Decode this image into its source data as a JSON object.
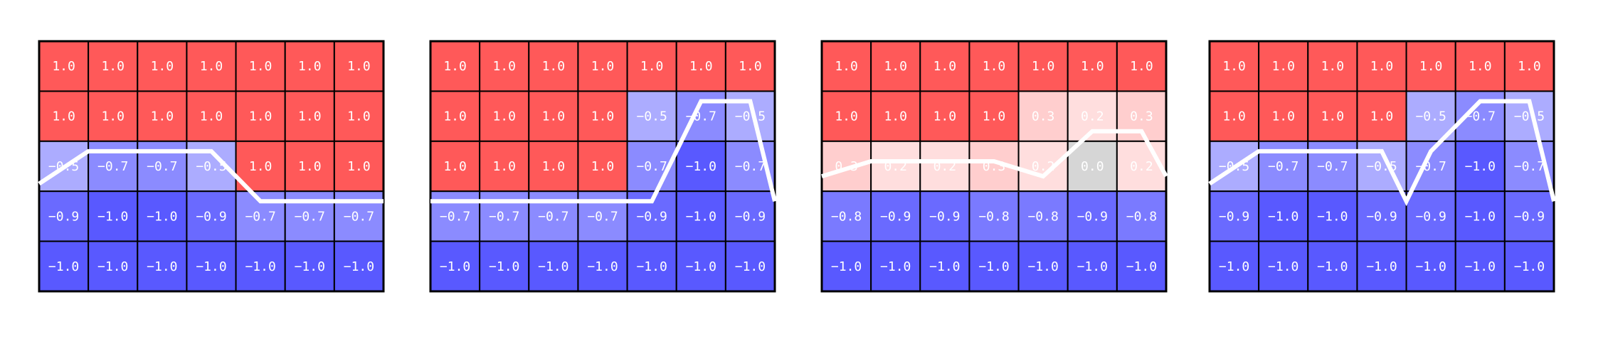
{
  "chart_data": [
    {
      "type": "heatmap",
      "rows": 5,
      "cols": 7,
      "value_range": [
        -1.0,
        1.0
      ],
      "colormap": "bwr",
      "values": [
        [
          1.0,
          1.0,
          1.0,
          1.0,
          1.0,
          1.0,
          1.0
        ],
        [
          1.0,
          1.0,
          1.0,
          1.0,
          1.0,
          1.0,
          1.0
        ],
        [
          -0.5,
          -0.7,
          -0.7,
          -0.5,
          1.0,
          1.0,
          1.0
        ],
        [
          -0.9,
          -1.0,
          -1.0,
          -0.9,
          -0.7,
          -0.7,
          -0.7
        ],
        [
          -1.0,
          -1.0,
          -1.0,
          -1.0,
          -1.0,
          -1.0,
          -1.0
        ]
      ],
      "labels": [
        [
          "1.0",
          "1.0",
          "1.0",
          "1.0",
          "1.0",
          "1.0",
          "1.0"
        ],
        [
          "1.0",
          "1.0",
          "1.0",
          "1.0",
          "1.0",
          "1.0",
          "1.0"
        ],
        [
          "−0.5",
          "−0.7",
          "−0.7",
          "−0.5",
          "1.0",
          "1.0",
          "1.0"
        ],
        [
          "−0.9",
          "−1.0",
          "−1.0",
          "−0.9",
          "−0.7",
          "−0.7",
          "−0.7"
        ],
        [
          "−1.0",
          "−1.0",
          "−1.0",
          "−1.0",
          "−1.0",
          "−1.0",
          "−1.0"
        ]
      ],
      "path": {
        "color": "#ffffff",
        "x": [
          -0.5,
          0.5,
          1.0,
          2.0,
          3.0,
          4.0,
          5.0,
          6.0,
          6.5
        ],
        "y": [
          2.85,
          2.2,
          2.2,
          2.2,
          2.2,
          3.2,
          3.2,
          3.2,
          3.2
        ]
      }
    },
    {
      "type": "heatmap",
      "rows": 5,
      "cols": 7,
      "value_range": [
        -1.0,
        1.0
      ],
      "colormap": "bwr",
      "values": [
        [
          1.0,
          1.0,
          1.0,
          1.0,
          1.0,
          1.0,
          1.0
        ],
        [
          1.0,
          1.0,
          1.0,
          1.0,
          -0.5,
          -0.7,
          -0.5
        ],
        [
          1.0,
          1.0,
          1.0,
          1.0,
          -0.7,
          -1.0,
          -0.7
        ],
        [
          -0.7,
          -0.7,
          -0.7,
          -0.7,
          -0.9,
          -1.0,
          -0.9
        ],
        [
          -1.0,
          -1.0,
          -1.0,
          -1.0,
          -1.0,
          -1.0,
          -1.0
        ]
      ],
      "labels": [
        [
          "1.0",
          "1.0",
          "1.0",
          "1.0",
          "1.0",
          "1.0",
          "1.0"
        ],
        [
          "1.0",
          "1.0",
          "1.0",
          "1.0",
          "−0.5",
          "−0.7",
          "−0.5"
        ],
        [
          "1.0",
          "1.0",
          "1.0",
          "1.0",
          "−0.7",
          "−1.0",
          "−0.7"
        ],
        [
          "−0.7",
          "−0.7",
          "−0.7",
          "−0.7",
          "−0.9",
          "−1.0",
          "−0.9"
        ],
        [
          "−1.0",
          "−1.0",
          "−1.0",
          "−1.0",
          "−1.0",
          "−1.0",
          "−1.0"
        ]
      ],
      "path": {
        "color": "#ffffff",
        "x": [
          -0.5,
          0.0,
          1.0,
          2.0,
          3.0,
          4.0,
          5.0,
          6.0,
          6.5
        ],
        "y": [
          3.2,
          3.2,
          3.2,
          3.2,
          3.2,
          3.2,
          1.2,
          1.2,
          3.2
        ]
      }
    },
    {
      "type": "heatmap",
      "rows": 5,
      "cols": 7,
      "value_range": [
        -1.0,
        1.0
      ],
      "colormap": "bwr",
      "values": [
        [
          1.0,
          1.0,
          1.0,
          1.0,
          1.0,
          1.0,
          1.0
        ],
        [
          1.0,
          1.0,
          1.0,
          1.0,
          0.3,
          0.2,
          0.3
        ],
        [
          0.3,
          0.2,
          0.2,
          0.3,
          0.2,
          0.0,
          0.2
        ],
        [
          -0.8,
          -0.9,
          -0.9,
          -0.8,
          -0.8,
          -0.9,
          -0.8
        ],
        [
          -1.0,
          -1.0,
          -1.0,
          -1.0,
          -1.0,
          -1.0,
          -1.0
        ]
      ],
      "labels": [
        [
          "1.0",
          "1.0",
          "1.0",
          "1.0",
          "1.0",
          "1.0",
          "1.0"
        ],
        [
          "1.0",
          "1.0",
          "1.0",
          "1.0",
          "0.3",
          "0.2",
          "0.3"
        ],
        [
          "0.3",
          "0.2",
          "0.2",
          "0.3",
          "0.2",
          "0.0",
          "0.2"
        ],
        [
          "−0.8",
          "−0.9",
          "−0.9",
          "−0.8",
          "−0.8",
          "−0.9",
          "−0.8"
        ],
        [
          "−1.0",
          "−1.0",
          "−1.0",
          "−1.0",
          "−1.0",
          "−1.0",
          "−1.0"
        ]
      ],
      "path": {
        "color": "#ffffff",
        "x": [
          -0.5,
          0.5,
          1.0,
          2.0,
          3.0,
          4.0,
          5.0,
          6.0,
          6.5
        ],
        "y": [
          2.7,
          2.4,
          2.4,
          2.4,
          2.4,
          2.7,
          1.8,
          1.8,
          2.7
        ]
      }
    },
    {
      "type": "heatmap",
      "rows": 5,
      "cols": 7,
      "value_range": [
        -1.0,
        1.0
      ],
      "colormap": "bwr",
      "values": [
        [
          1.0,
          1.0,
          1.0,
          1.0,
          1.0,
          1.0,
          1.0
        ],
        [
          1.0,
          1.0,
          1.0,
          1.0,
          -0.5,
          -0.7,
          -0.5
        ],
        [
          -0.5,
          -0.7,
          -0.7,
          -0.5,
          -0.7,
          -1.0,
          -0.7
        ],
        [
          -0.9,
          -1.0,
          -1.0,
          -0.9,
          -0.9,
          -1.0,
          -0.9
        ],
        [
          -1.0,
          -1.0,
          -1.0,
          -1.0,
          -1.0,
          -1.0,
          -1.0
        ]
      ],
      "labels": [
        [
          "1.0",
          "1.0",
          "1.0",
          "1.0",
          "1.0",
          "1.0",
          "1.0"
        ],
        [
          "1.0",
          "1.0",
          "1.0",
          "1.0",
          "−0.5",
          "−0.7",
          "−0.5"
        ],
        [
          "−0.5",
          "−0.7",
          "−0.7",
          "−0.5",
          "−0.7",
          "−1.0",
          "−0.7"
        ],
        [
          "−0.9",
          "−1.0",
          "−1.0",
          "−0.9",
          "−0.9",
          "−1.0",
          "−0.9"
        ],
        [
          "−1.0",
          "−1.0",
          "−1.0",
          "−1.0",
          "−1.0",
          "−1.0",
          "−1.0"
        ]
      ],
      "path": {
        "color": "#ffffff",
        "x": [
          -0.5,
          0.5,
          1.0,
          2.0,
          3.0,
          3.5,
          4.0,
          5.0,
          6.0,
          6.5
        ],
        "y": [
          2.85,
          2.2,
          2.2,
          2.2,
          2.2,
          3.2,
          2.2,
          1.2,
          1.2,
          3.2
        ]
      }
    }
  ]
}
